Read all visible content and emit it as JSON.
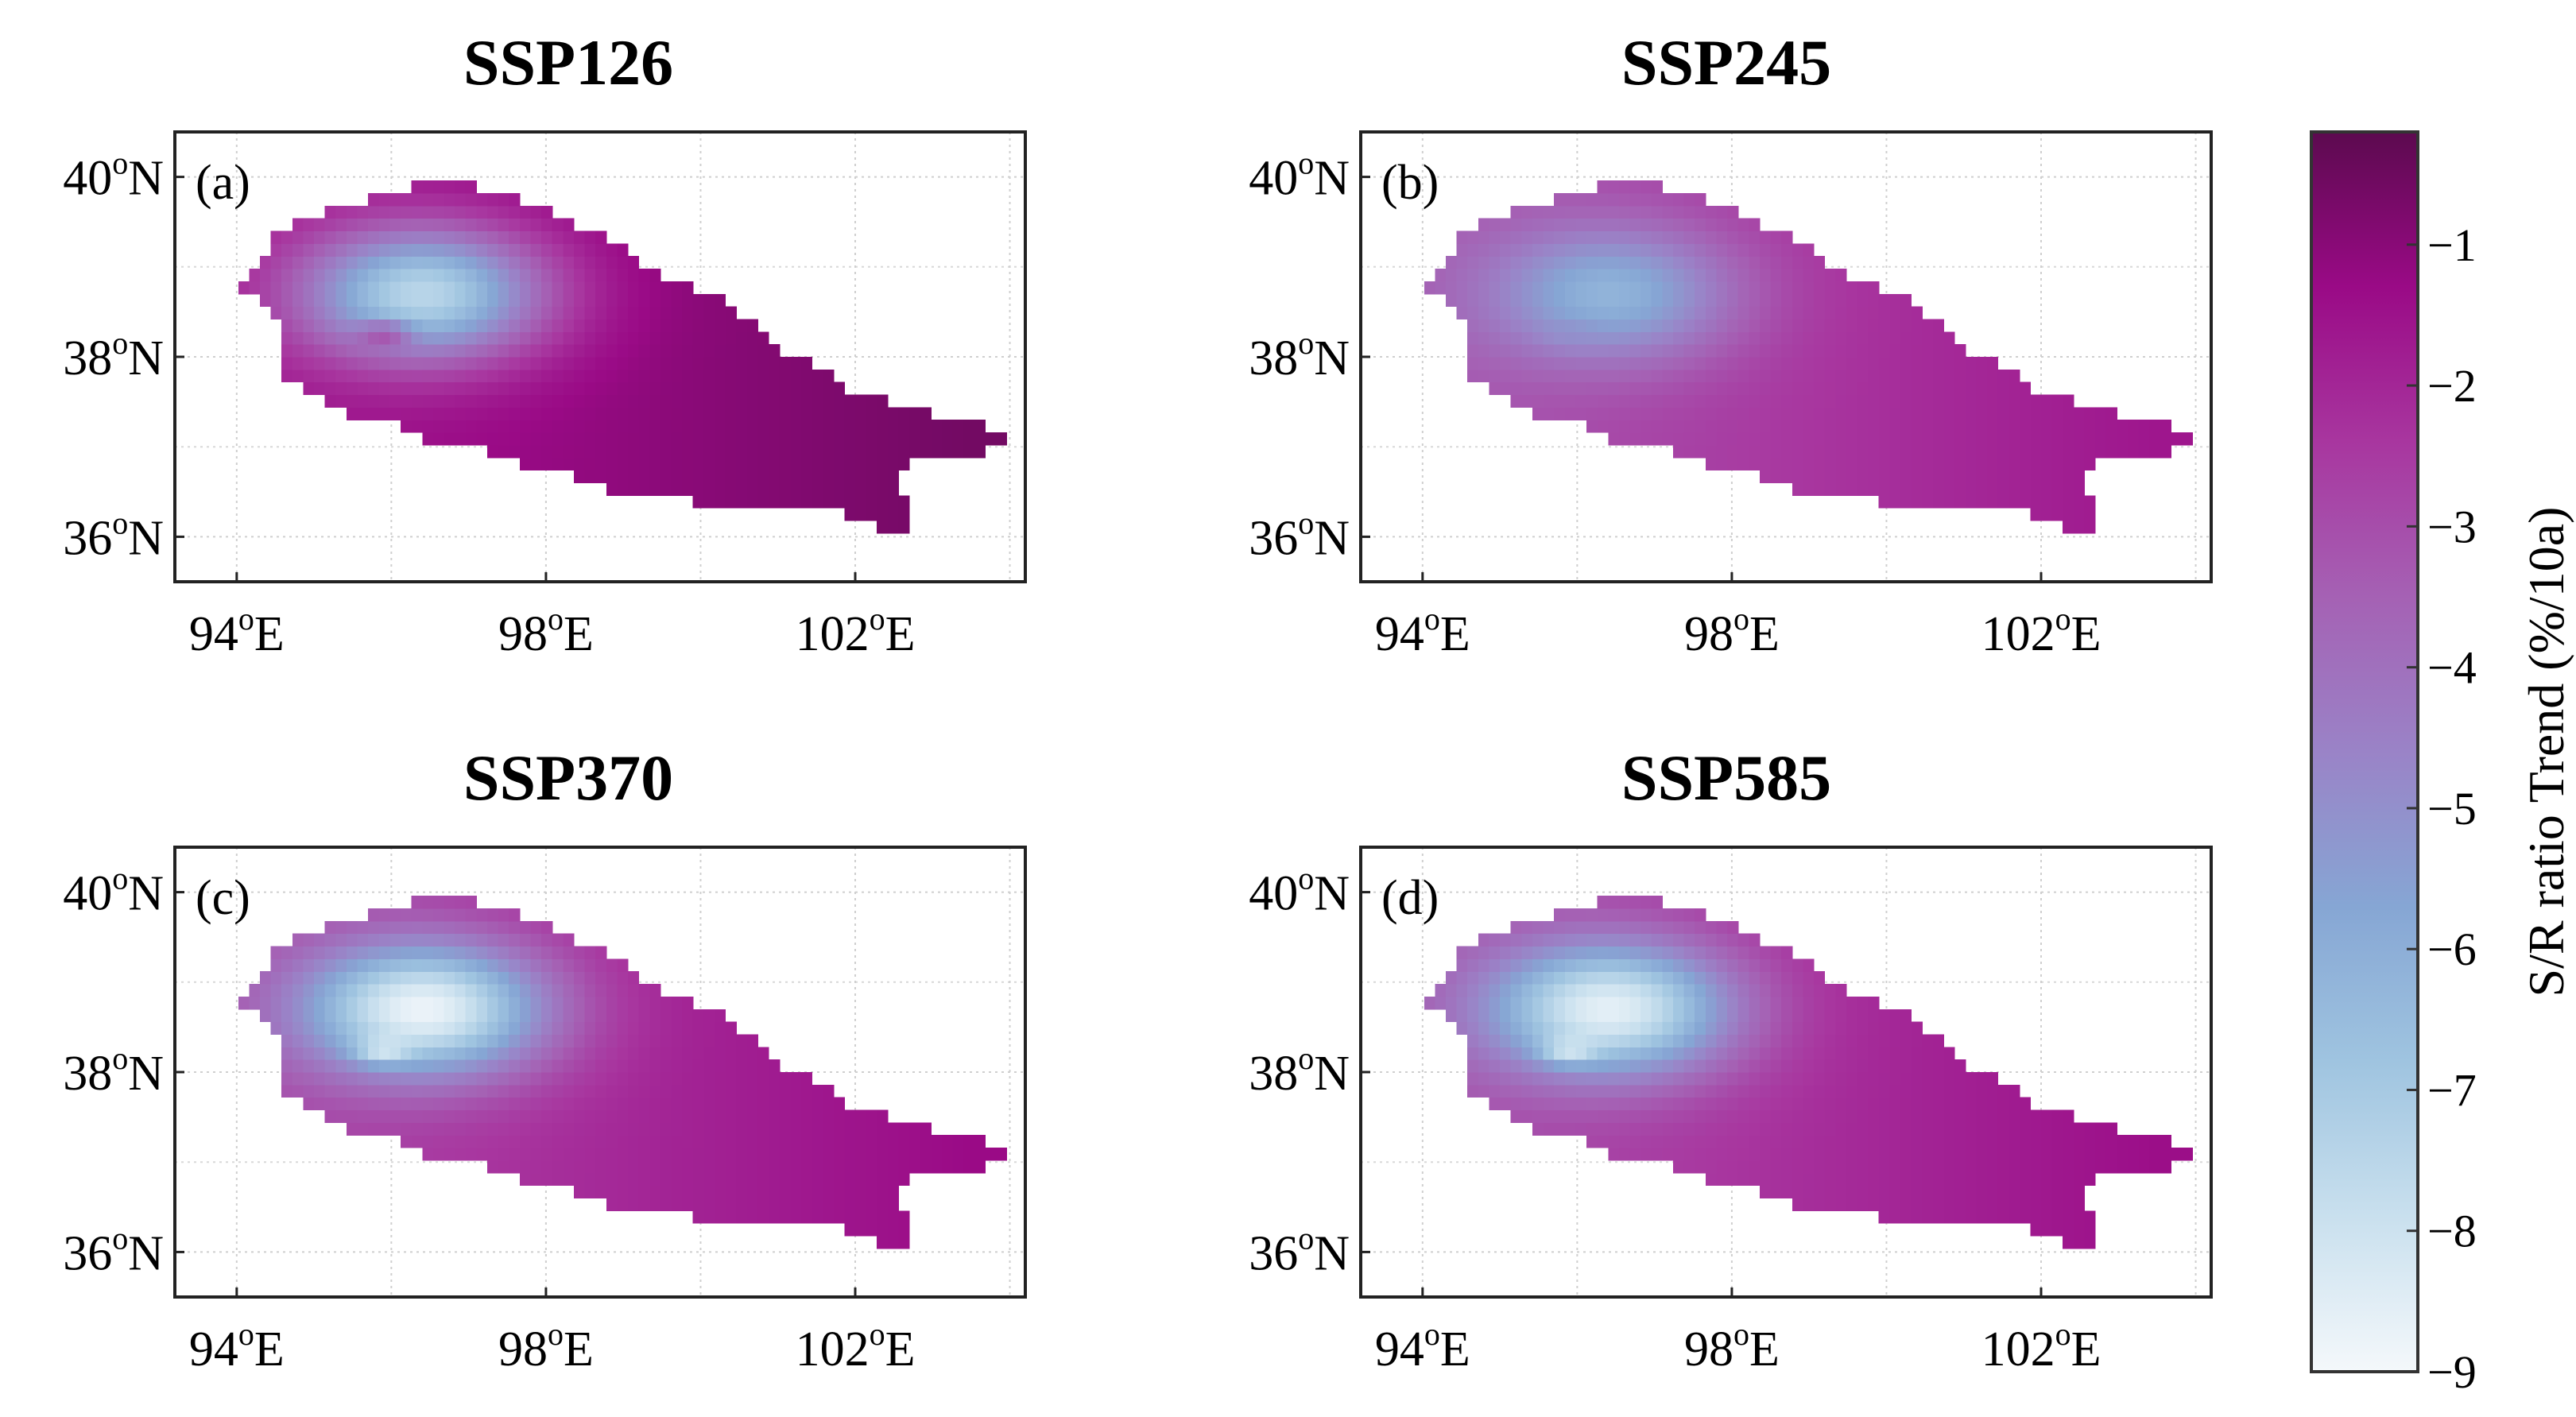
{
  "panels": [
    {
      "id": "a",
      "title": "SSP126",
      "label": "(a)",
      "hot_value": -7.5,
      "base_west": -1.6,
      "base_east": -0.6,
      "lake_value": -2.3
    },
    {
      "id": "b",
      "title": "SSP245",
      "label": "(b)",
      "hot_value": -6.2,
      "base_west": -3.2,
      "base_east": -1.6,
      "lake_value": -5.0
    },
    {
      "id": "c",
      "title": "SSP370",
      "label": "(c)",
      "hot_value": -8.8,
      "base_west": -2.8,
      "base_east": -1.3,
      "lake_value": -9.0
    },
    {
      "id": "d",
      "title": "SSP585",
      "label": "(d)",
      "hot_value": -8.6,
      "base_west": -3.0,
      "base_east": -1.4,
      "lake_value": -9.0
    }
  ],
  "axes": {
    "lat_ticks": [
      {
        "value": 40,
        "text": "40",
        "unit": "N"
      },
      {
        "value": 38,
        "text": "38",
        "unit": "N"
      },
      {
        "value": 36,
        "text": "36",
        "unit": "N"
      }
    ],
    "lon_ticks": [
      {
        "value": 94,
        "text": "94",
        "unit": "E"
      },
      {
        "value": 98,
        "text": "98",
        "unit": "E"
      },
      {
        "value": 102,
        "text": "102",
        "unit": "E"
      }
    ],
    "degree_symbol": "o",
    "lat_range": [
      35.5,
      40.5
    ],
    "lon_range": [
      93.2,
      104.2
    ]
  },
  "colorbar": {
    "label": "S/R ratio Trend (%/10a)",
    "min": -9,
    "max": -0.2,
    "ticks": [
      {
        "value": -1,
        "text": "−1"
      },
      {
        "value": -2,
        "text": "−2"
      },
      {
        "value": -3,
        "text": "−3"
      },
      {
        "value": -4,
        "text": "−4"
      },
      {
        "value": -5,
        "text": "−5"
      },
      {
        "value": -6,
        "text": "−6"
      },
      {
        "value": -7,
        "text": "−7"
      },
      {
        "value": -8,
        "text": "−8"
      },
      {
        "value": -9,
        "text": "−9"
      }
    ],
    "colors": [
      "#f4f8fb",
      "#c9e0ee",
      "#9fc4e0",
      "#86a6d4",
      "#9a83c7",
      "#a561b4",
      "#a8369f",
      "#9a0a86",
      "#5c0a4f"
    ]
  },
  "region_outline": [
    [
      93.7,
      38.85
    ],
    [
      94.1,
      38.85
    ],
    [
      94.5,
      39.35
    ],
    [
      95.1,
      39.6
    ],
    [
      96.0,
      39.85
    ],
    [
      96.8,
      39.95
    ],
    [
      97.8,
      39.7
    ],
    [
      98.8,
      39.3
    ],
    [
      99.5,
      38.9
    ],
    [
      100.3,
      38.65
    ],
    [
      101.0,
      38.1
    ],
    [
      101.6,
      37.85
    ],
    [
      102.0,
      37.6
    ],
    [
      102.8,
      37.4
    ],
    [
      103.6,
      37.25
    ],
    [
      104.0,
      37.1
    ],
    [
      103.4,
      36.85
    ],
    [
      102.8,
      36.95
    ],
    [
      102.5,
      36.6
    ],
    [
      102.8,
      36.3
    ],
    [
      102.6,
      36.0
    ],
    [
      102.0,
      36.2
    ],
    [
      101.6,
      36.35
    ],
    [
      101.0,
      36.25
    ],
    [
      100.5,
      36.3
    ],
    [
      99.8,
      36.4
    ],
    [
      98.9,
      36.5
    ],
    [
      98.2,
      36.7
    ],
    [
      97.5,
      36.85
    ],
    [
      97.1,
      37.05
    ],
    [
      96.8,
      37.0
    ],
    [
      96.5,
      37.0
    ],
    [
      96.1,
      37.25
    ],
    [
      95.5,
      37.3
    ],
    [
      95.0,
      37.55
    ],
    [
      94.6,
      37.8
    ],
    [
      94.6,
      38.3
    ],
    [
      94.3,
      38.7
    ]
  ]
}
